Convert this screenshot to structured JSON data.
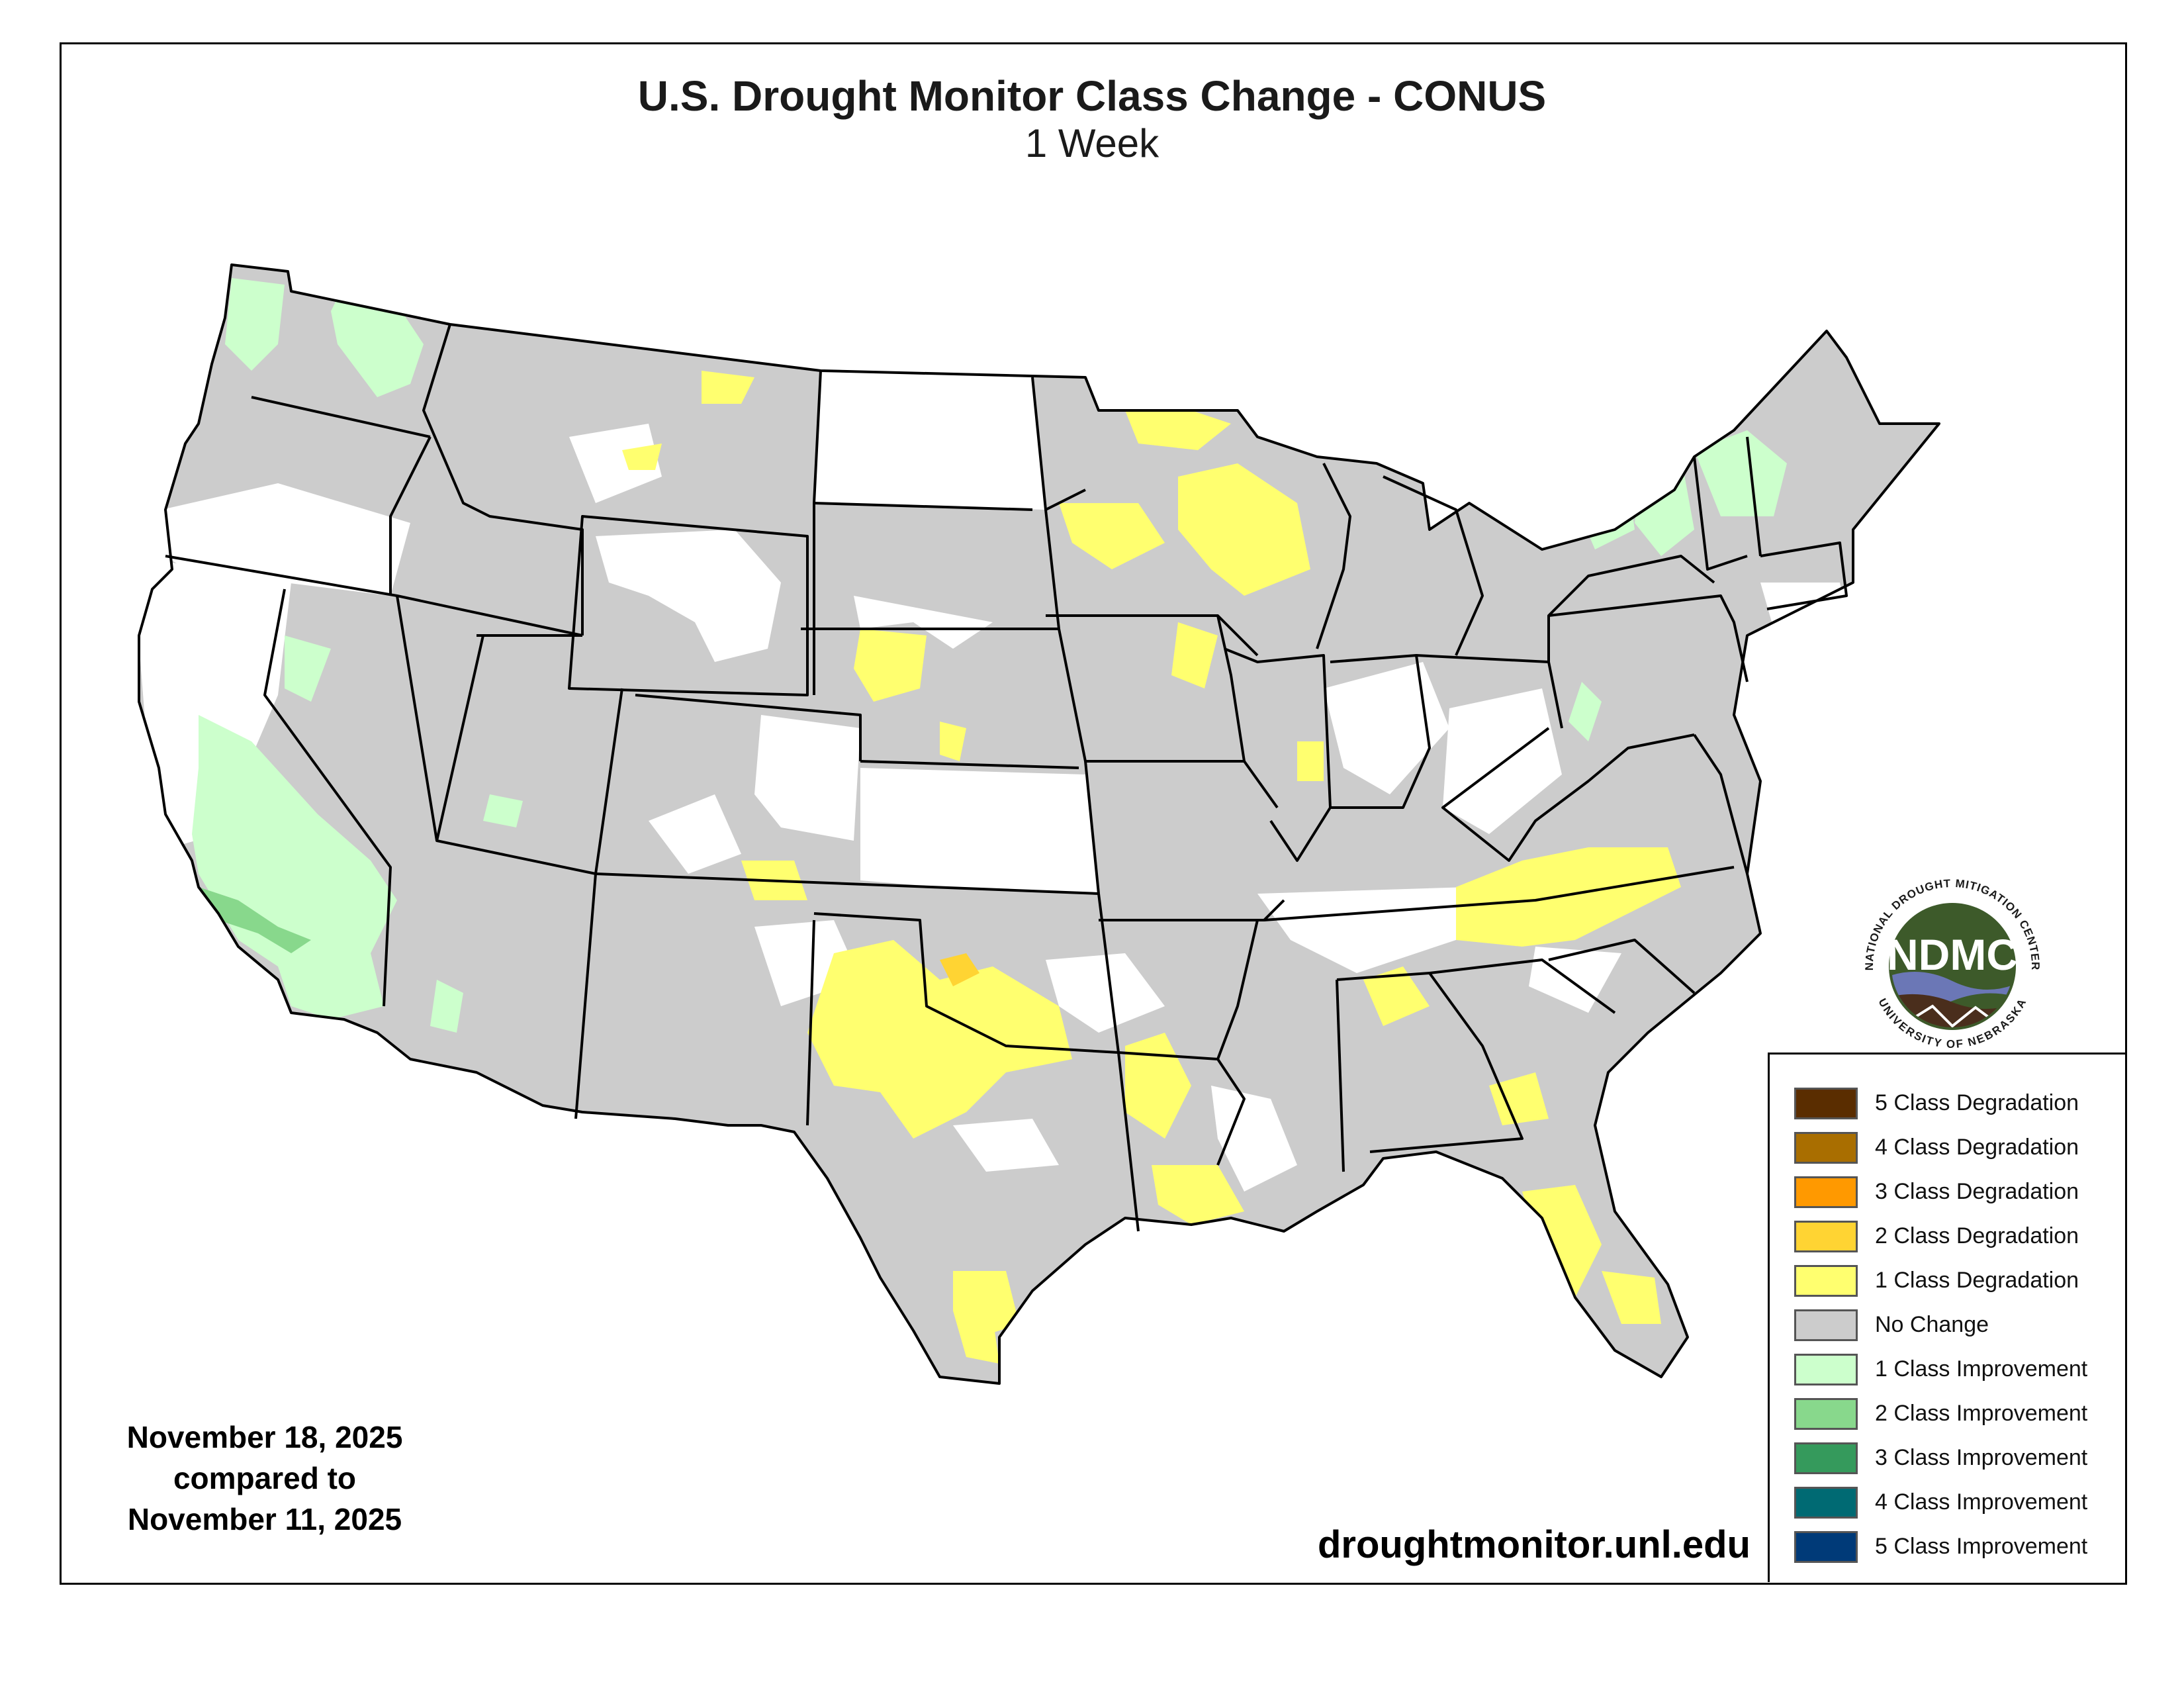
{
  "title": "U.S. Drought Monitor Class Change - CONUS",
  "subtitle": "1 Week",
  "dates": {
    "line1": "November 18, 2025",
    "line2": "compared to",
    "line3": "November 11, 2025"
  },
  "website": "droughtmonitor.unl.edu",
  "logo": {
    "acronym": "NDMC",
    "top_arc": "NATIONAL DROUGHT MITIGATION CENTER",
    "bottom_arc": "UNIVERSITY OF NEBRASKA"
  },
  "legend": [
    {
      "label": "5 Class Degradation",
      "color": "#5a2d00"
    },
    {
      "label": "4 Class Degradation",
      "color": "#a96e00"
    },
    {
      "label": "3 Class Degradation",
      "color": "#ff9900"
    },
    {
      "label": "2 Class Degradation",
      "color": "#ffd433"
    },
    {
      "label": "1 Class Degradation",
      "color": "#ffff6f"
    },
    {
      "label": "No Change",
      "color": "#cccccc"
    },
    {
      "label": "1 Class Improvement",
      "color": "#ccffcc"
    },
    {
      "label": "2 Class Improvement",
      "color": "#88d88c"
    },
    {
      "label": "3 Class Improvement",
      "color": "#359a5c"
    },
    {
      "label": "4 Class Improvement",
      "color": "#006a73"
    },
    {
      "label": "5 Class Improvement",
      "color": "#003a78"
    }
  ],
  "colors": {
    "no_change": "#cccccc",
    "degradation_1": "#ffff6f",
    "degradation_2": "#ffd433",
    "degradation_3": "#ff9900",
    "improvement_1": "#ccffcc",
    "improvement_2": "#88d88c",
    "logo_green": "#3d5a2a",
    "logo_blue": "#6b77b6",
    "logo_brown": "#4a2e1c"
  }
}
